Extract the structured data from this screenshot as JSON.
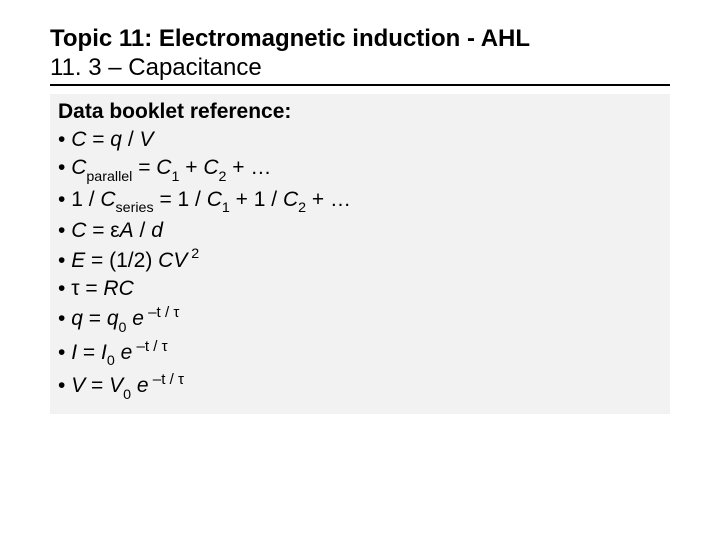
{
  "slide": {
    "title": "Topic 11: Electromagnetic induction - AHL",
    "subtitle": "11. 3 – Capacitance",
    "heading": "Data booklet reference:",
    "bullets": [
      {
        "prefix": "• ",
        "parts": [
          {
            "t": "C",
            "i": true
          },
          {
            "t": " = "
          },
          {
            "t": "q",
            "i": true
          },
          {
            "t": " / "
          },
          {
            "t": "V",
            "i": true
          }
        ]
      },
      {
        "prefix": "• ",
        "parts": [
          {
            "t": "C",
            "i": true
          },
          {
            "t": "parallel",
            "sub": true
          },
          {
            "t": " = "
          },
          {
            "t": "C",
            "i": true
          },
          {
            "t": "1",
            "sub": true
          },
          {
            "t": " + "
          },
          {
            "t": "C",
            "i": true
          },
          {
            "t": "2",
            "sub": true
          },
          {
            "t": " + …"
          }
        ]
      },
      {
        "prefix": "• ",
        "parts": [
          {
            "t": "1 / "
          },
          {
            "t": "C",
            "i": true
          },
          {
            "t": "series",
            "sub": true
          },
          {
            "t": " = 1 / "
          },
          {
            "t": "C",
            "i": true
          },
          {
            "t": "1",
            "sub": true
          },
          {
            "t": " + 1 / "
          },
          {
            "t": "C",
            "i": true
          },
          {
            "t": "2",
            "sub": true
          },
          {
            "t": " + …"
          }
        ]
      },
      {
        "prefix": "• ",
        "parts": [
          {
            "t": "C",
            "i": true
          },
          {
            "t": " = "
          },
          {
            "t": "ε"
          },
          {
            "t": "A",
            "i": true
          },
          {
            "t": " / "
          },
          {
            "t": "d",
            "i": true
          }
        ]
      },
      {
        "prefix": "• ",
        "parts": [
          {
            "t": "E",
            "i": true
          },
          {
            "t": " = (1/2) "
          },
          {
            "t": "CV",
            "i": true
          },
          {
            "t": " 2",
            "sup": true
          }
        ]
      },
      {
        "prefix": "• ",
        "parts": [
          {
            "t": "τ"
          },
          {
            "t": " = "
          },
          {
            "t": "RC",
            "i": true
          }
        ]
      },
      {
        "prefix": "• ",
        "parts": [
          {
            "t": "q",
            "i": true
          },
          {
            "t": " = "
          },
          {
            "t": "q",
            "i": true
          },
          {
            "t": "0",
            "sub": true
          },
          {
            "t": " e",
            "i": true
          },
          {
            "t": " –t / τ",
            "supexp": true
          }
        ]
      },
      {
        "prefix": "• ",
        "parts": [
          {
            "t": "I",
            "i": true
          },
          {
            "t": " = "
          },
          {
            "t": "I",
            "i": true
          },
          {
            "t": "0",
            "sub": true
          },
          {
            "t": " e",
            "i": true
          },
          {
            "t": " –t / τ",
            "supexp": true
          }
        ]
      },
      {
        "prefix": "• ",
        "parts": [
          {
            "t": "V",
            "i": true
          },
          {
            "t": " = "
          },
          {
            "t": "V",
            "i": true
          },
          {
            "t": "0",
            "sub": true
          },
          {
            "t": " e",
            "i": true
          },
          {
            "t": " –t / τ",
            "supexp": true
          }
        ]
      }
    ]
  },
  "style": {
    "background": "#ffffff",
    "body_box_bg": "#f2f2f2",
    "text_color": "#000000",
    "title_fontsize": 24,
    "body_fontsize": 21,
    "underline_color": "#000000"
  }
}
